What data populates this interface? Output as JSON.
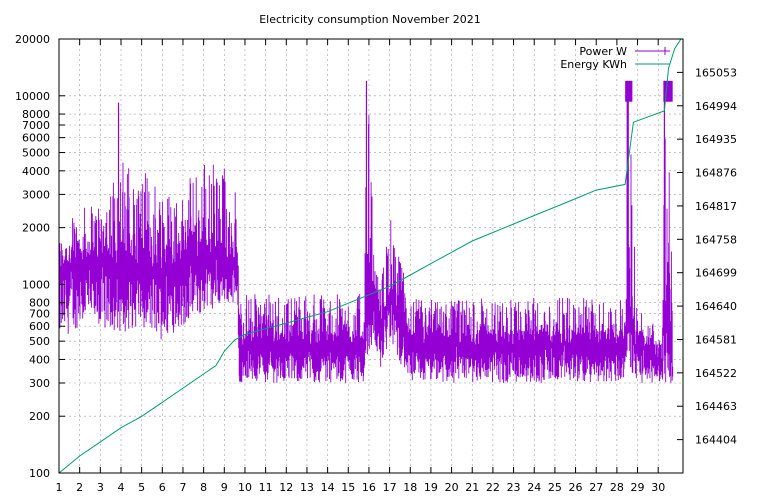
{
  "chart_data": {
    "type": "line",
    "title": "Electricity consumption November 2021",
    "xlabel": "",
    "ylabel": "",
    "y2label": "",
    "x_ticks": [
      1,
      2,
      3,
      4,
      5,
      6,
      7,
      8,
      9,
      10,
      11,
      12,
      13,
      14,
      15,
      16,
      17,
      18,
      19,
      20,
      21,
      22,
      23,
      24,
      25,
      26,
      27,
      28,
      29,
      30
    ],
    "x_range": [
      1,
      31.2
    ],
    "y_scale": "log",
    "y_range": [
      100,
      20000
    ],
    "y_ticks": [
      100,
      200,
      300,
      400,
      500,
      600,
      700,
      800,
      1000,
      2000,
      3000,
      4000,
      5000,
      6000,
      7000,
      8000,
      10000,
      20000
    ],
    "y2_range": [
      164345,
      165112
    ],
    "y2_ticks": [
      164404,
      164463,
      164522,
      164581,
      164640,
      164699,
      164758,
      164817,
      164876,
      164935,
      164994,
      165053
    ],
    "grid": true,
    "legend_position": "top-right",
    "series": [
      {
        "name": "Power W",
        "axis": "y",
        "color": "#9400d3",
        "style": "impulses",
        "profile": [
          {
            "x": 1.0,
            "base": 1200,
            "low": 500,
            "high": 1800
          },
          {
            "x": 2.0,
            "base": 1300,
            "low": 600,
            "high": 2500
          },
          {
            "x": 3.0,
            "base": 1300,
            "low": 600,
            "high": 3000
          },
          {
            "x": 4.0,
            "base": 1300,
            "low": 550,
            "high": 5000
          },
          {
            "x": 5.0,
            "base": 1200,
            "low": 600,
            "high": 4000
          },
          {
            "x": 6.0,
            "base": 1200,
            "low": 500,
            "high": 4000
          },
          {
            "x": 7.0,
            "base": 1300,
            "low": 600,
            "high": 3000
          },
          {
            "x": 8.0,
            "base": 1400,
            "low": 700,
            "high": 5000
          },
          {
            "x": 9.0,
            "base": 1400,
            "low": 800,
            "high": 4500
          },
          {
            "x": 9.6,
            "base": 1300,
            "low": 800,
            "high": 3300
          },
          {
            "x": 9.7,
            "base": 480,
            "low": 300,
            "high": 900
          },
          {
            "x": 15.8,
            "base": 480,
            "low": 300,
            "high": 900
          },
          {
            "x": 15.9,
            "base": 700,
            "low": 400,
            "high": 12000
          },
          {
            "x": 16.2,
            "base": 900,
            "low": 500,
            "high": 1500
          },
          {
            "x": 16.6,
            "base": 550,
            "low": 350,
            "high": 1000
          },
          {
            "x": 17.0,
            "base": 900,
            "low": 500,
            "high": 2500
          },
          {
            "x": 17.4,
            "base": 700,
            "low": 400,
            "high": 1500
          },
          {
            "x": 18.0,
            "base": 480,
            "low": 300,
            "high": 850
          },
          {
            "x": 28.3,
            "base": 480,
            "low": 300,
            "high": 850
          },
          {
            "x": 28.5,
            "base": 700,
            "low": 400,
            "high": 12000
          },
          {
            "x": 28.9,
            "base": 480,
            "low": 300,
            "high": 800
          },
          {
            "x": 30.2,
            "base": 400,
            "low": 300,
            "high": 600
          },
          {
            "x": 30.3,
            "base": 800,
            "low": 300,
            "high": 12000
          },
          {
            "x": 30.7,
            "base": 350,
            "low": 300,
            "high": 400
          }
        ],
        "peaks": [
          {
            "x": 3.88,
            "y": 9200
          },
          {
            "x": 15.88,
            "y": 12000
          },
          {
            "x": 28.5,
            "y": 12000
          },
          {
            "x": 30.3,
            "y": 12000
          }
        ],
        "blocks": [
          {
            "x0": 28.4,
            "x1": 28.75,
            "y0": 9300,
            "y1": 12000
          },
          {
            "x0": 30.25,
            "x1": 30.7,
            "y0": 9300,
            "y1": 12000
          }
        ]
      },
      {
        "name": "Energy KWh",
        "axis": "y2",
        "color": "#009e73",
        "style": "line",
        "points": [
          [
            1.0,
            164345
          ],
          [
            2.0,
            164375
          ],
          [
            3.0,
            164400
          ],
          [
            4.0,
            164425
          ],
          [
            5.0,
            164445
          ],
          [
            6.0,
            164470
          ],
          [
            7.0,
            164495
          ],
          [
            8.0,
            164520
          ],
          [
            8.6,
            164535
          ],
          [
            9.0,
            164560
          ],
          [
            9.5,
            164580
          ],
          [
            10.0,
            164590
          ],
          [
            11.0,
            164600
          ],
          [
            12.0,
            164610
          ],
          [
            13.0,
            164620
          ],
          [
            14.0,
            164630
          ],
          [
            15.0,
            164645
          ],
          [
            16.0,
            164660
          ],
          [
            17.0,
            164675
          ],
          [
            18.0,
            164695
          ],
          [
            19.0,
            164715
          ],
          [
            20.0,
            164735
          ],
          [
            21.0,
            164755
          ],
          [
            22.0,
            164770
          ],
          [
            23.0,
            164785
          ],
          [
            24.0,
            164800
          ],
          [
            25.0,
            164815
          ],
          [
            26.0,
            164830
          ],
          [
            27.0,
            164845
          ],
          [
            28.4,
            164855
          ],
          [
            28.8,
            164965
          ],
          [
            30.3,
            164985
          ],
          [
            30.5,
            165060
          ],
          [
            30.8,
            165095
          ],
          [
            31.1,
            165112
          ]
        ]
      }
    ]
  }
}
